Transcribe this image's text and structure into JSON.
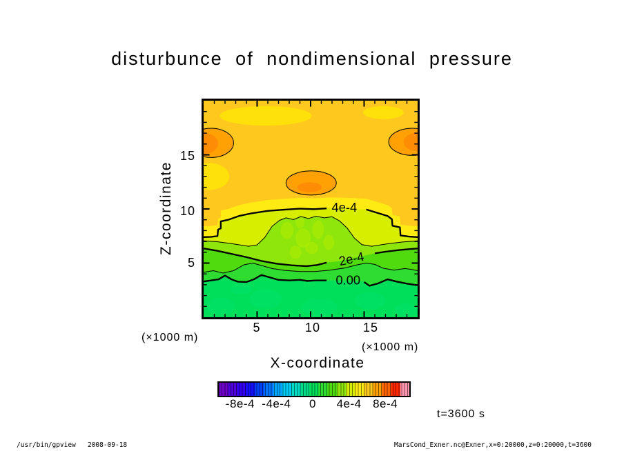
{
  "title": "disturbunce  of  nondimensional  pressure",
  "axes": {
    "x_label": "X-coordinate",
    "y_label": "Z-coordinate",
    "x_unit_left": "(×1000 m)",
    "x_unit_right": "(×1000 m)",
    "y_ticks": [
      "15",
      "10",
      "5"
    ],
    "x_ticks": [
      "5",
      "10",
      "15"
    ]
  },
  "annotation": "t=3600 s",
  "footer": {
    "left": "/usr/bin/gpview   2008-09-18",
    "right": "MarsCond_Exner.nc@Exner,x=0:20000,z=0:20000,t=3600"
  },
  "chart_data": {
    "type": "heatmap",
    "subtype": "filled-contour",
    "title": "disturbunce of nondimensional pressure",
    "xlabel": "X-coordinate (×1000 m)",
    "ylabel": "Z-coordinate (×1000 m)",
    "xlim": [
      0,
      20
    ],
    "ylim": [
      0,
      20
    ],
    "x_major_ticks": [
      5,
      10,
      15
    ],
    "y_major_ticks": [
      5,
      10,
      15
    ],
    "minor_tick_step": 1,
    "contour_interval": 0.0001,
    "time_annotation": "t=3600 s",
    "colorbar": {
      "range": [
        -0.00105,
        0.00105
      ],
      "tick_values": [
        -0.0008,
        -0.0004,
        0,
        0.0004,
        0.0008
      ],
      "tick_labels": [
        "-8e-4",
        "-4e-4",
        "0",
        "4e-4",
        "8e-4"
      ],
      "colors": [
        "#6E00C8",
        "#5000DC",
        "#3200F0",
        "#1410FF",
        "#0041FF",
        "#0073FF",
        "#00A5FF",
        "#00CDF5",
        "#00DCC3",
        "#00DC87",
        "#00DF5A",
        "#2EDC32",
        "#50DB0F",
        "#8FE60A",
        "#D8EE00",
        "#FFEB14",
        "#FFC81E",
        "#FFA005",
        "#FF6400",
        "#FF2800",
        "#FF96AF"
      ]
    },
    "fills": {
      "base_5_6": "#FFC81E",
      "band_4_5": "#FFEB14",
      "pale_patch": "#FFE10A",
      "blob_6_7": "#FFA005",
      "blob_core_7_8": "#FF8C05",
      "band_3_4": "#D8EE00",
      "band_2_3": "#8FE60A",
      "band_1_2": "#50DB0F",
      "band_0_1": "#2EDC32",
      "band_neg": "#00DF5A",
      "band_above_offset": 1.0
    },
    "contours": [
      {
        "value": 0.0004,
        "label": "4e-4",
        "weight": "thick",
        "fill_below": "band_3_4",
        "label_at": [
          13.15,
          10.15
        ],
        "label_angle": 0,
        "gap": [
          11.5,
          15.2
        ],
        "points": [
          [
            0,
            7.4
          ],
          [
            0.7,
            7.42
          ],
          [
            1.3,
            7.5
          ],
          [
            1.35,
            8.1
          ],
          [
            1.6,
            8.2
          ],
          [
            1.6,
            8.85
          ],
          [
            2.3,
            9.0
          ],
          [
            3.3,
            9.35
          ],
          [
            4.5,
            9.6
          ],
          [
            6,
            9.82
          ],
          [
            7.5,
            9.93
          ],
          [
            9,
            10.03
          ],
          [
            10.3,
            9.98
          ],
          [
            11.5,
            10.05
          ],
          [
            12.6,
            10.05
          ],
          [
            14.0,
            10.0
          ],
          [
            15.2,
            9.95
          ],
          [
            16.2,
            9.65
          ],
          [
            17.2,
            9.35
          ],
          [
            17.6,
            9.05
          ],
          [
            17.65,
            8.45
          ],
          [
            18.35,
            8.3
          ],
          [
            18.4,
            7.55
          ],
          [
            19.2,
            7.45
          ],
          [
            20,
            7.4
          ]
        ]
      },
      {
        "value": 0.0003,
        "label": null,
        "weight": "thin",
        "fill_below": "band_2_3",
        "points": [
          [
            0,
            7.05
          ],
          [
            1.2,
            6.98
          ],
          [
            2.6,
            6.8
          ],
          [
            4.2,
            6.55
          ],
          [
            5,
            6.68
          ],
          [
            5.7,
            7.35
          ],
          [
            6.4,
            8.4
          ],
          [
            7.1,
            8.95
          ],
          [
            7.7,
            9.18
          ],
          [
            8.4,
            9.02
          ],
          [
            9.1,
            9.3
          ],
          [
            9.8,
            9.12
          ],
          [
            10.5,
            9.32
          ],
          [
            11.3,
            9.18
          ],
          [
            12,
            9.28
          ],
          [
            12.7,
            8.9
          ],
          [
            13.4,
            8.25
          ],
          [
            14.1,
            7.3
          ],
          [
            14.8,
            6.7
          ],
          [
            15.7,
            6.55
          ],
          [
            17.2,
            6.78
          ],
          [
            18.6,
            6.95
          ],
          [
            20,
            7.05
          ]
        ]
      },
      {
        "value": 0.0002,
        "label": "2e-4",
        "weight": "thick",
        "fill_below": "band_1_2",
        "label_at": [
          13.9,
          5.42
        ],
        "label_angle": -12,
        "gap": [
          11.5,
          16.0
        ],
        "points": [
          [
            0,
            6.35
          ],
          [
            1.2,
            6.15
          ],
          [
            2.6,
            5.85
          ],
          [
            4,
            5.55
          ],
          [
            5.4,
            5.2
          ],
          [
            6.8,
            4.95
          ],
          [
            8.2,
            4.8
          ],
          [
            9.6,
            4.72
          ],
          [
            10.6,
            4.82
          ],
          [
            11.5,
            5.05
          ],
          [
            12.8,
            5.2
          ],
          [
            14.4,
            5.55
          ],
          [
            16.0,
            5.9
          ],
          [
            17.0,
            6.05
          ],
          [
            18.2,
            6.2
          ],
          [
            19.1,
            6.28
          ],
          [
            20,
            6.35
          ]
        ]
      },
      {
        "value": 0.0001,
        "label": null,
        "weight": "thin",
        "fill_below": "band_0_1",
        "points": [
          [
            0,
            4.15
          ],
          [
            0.9,
            4.3
          ],
          [
            1.8,
            4.08
          ],
          [
            2.8,
            4.3
          ],
          [
            3.8,
            4.85
          ],
          [
            4.6,
            5.0
          ],
          [
            5.4,
            4.78
          ],
          [
            6.4,
            4.5
          ],
          [
            7.6,
            4.32
          ],
          [
            9,
            4.22
          ],
          [
            10.4,
            4.22
          ],
          [
            11.8,
            4.35
          ],
          [
            13.2,
            4.55
          ],
          [
            14.4,
            4.85
          ],
          [
            15.2,
            5.0
          ],
          [
            16,
            4.88
          ],
          [
            16.8,
            4.52
          ],
          [
            17.8,
            4.35
          ],
          [
            18.8,
            4.5
          ],
          [
            19.4,
            4.42
          ],
          [
            20,
            4.3
          ]
        ]
      },
      {
        "value": 0,
        "label": "0.00",
        "weight": "thick",
        "fill_below": "band_neg",
        "label_at": [
          13.5,
          3.45
        ],
        "label_angle": 0,
        "gap": [
          11.7,
          15.0
        ],
        "points": [
          [
            0,
            3.3
          ],
          [
            0.7,
            3.4
          ],
          [
            1.4,
            3.5
          ],
          [
            2.0,
            3.85
          ],
          [
            2.6,
            3.5
          ],
          [
            3.2,
            3.28
          ],
          [
            4.0,
            3.25
          ],
          [
            4.7,
            3.5
          ],
          [
            5.4,
            3.9
          ],
          [
            6.1,
            3.7
          ],
          [
            7.0,
            3.45
          ],
          [
            8.0,
            3.4
          ],
          [
            9.0,
            3.45
          ],
          [
            9.7,
            3.35
          ],
          [
            10.5,
            3.4
          ],
          [
            11.5,
            3.4
          ],
          [
            12.5,
            3.4
          ],
          [
            13.5,
            3.38
          ],
          [
            14.9,
            3.3
          ],
          [
            15.0,
            3.25
          ],
          [
            15.5,
            2.9
          ],
          [
            16.3,
            3.12
          ],
          [
            17.2,
            3.5
          ],
          [
            18.0,
            3.3
          ],
          [
            19.0,
            3.1
          ],
          [
            20,
            2.95
          ]
        ]
      }
    ],
    "maxima_blobs": [
      {
        "cx": 0.7,
        "cz": 16.1,
        "rx": 2.1,
        "rz": 1.35,
        "core": {
          "cx": 0.15,
          "cz": 16.05,
          "rx": 1.2,
          "rz": 0.95
        }
      },
      {
        "cx": 19.5,
        "cz": 16.2,
        "rx": 2.2,
        "rz": 1.25,
        "core": {
          "cx": 19.95,
          "cz": 16.2,
          "rx": 1.25,
          "rz": 0.85
        }
      },
      {
        "cx": 10.05,
        "cz": 12.4,
        "rx": 2.35,
        "rz": 1.12,
        "core": {
          "cx": 9.9,
          "cz": 12.0,
          "rx": 1.15,
          "rz": 0.45
        }
      }
    ],
    "pale_patches": [
      {
        "cx": 5.8,
        "cz": 18.6,
        "rx": 4.3,
        "rz": 0.9
      },
      {
        "cx": 16.8,
        "cz": 18.9,
        "rx": 1.9,
        "rz": 0.6
      },
      {
        "cx": 0.5,
        "cz": 13.0,
        "rx": 1.9,
        "rz": 1.25
      }
    ],
    "speckles_dome": {
      "color": "#BFF000",
      "opacity": 0.4,
      "items": [
        [
          7.8,
          8.0,
          0.6,
          0.8
        ],
        [
          9.3,
          7.3,
          0.7,
          0.9
        ],
        [
          10.7,
          8.1,
          0.55,
          0.85
        ],
        [
          11.7,
          6.9,
          0.5,
          0.7
        ],
        [
          8.6,
          6.0,
          0.55,
          0.6
        ],
        [
          10.1,
          6.4,
          0.6,
          0.55
        ],
        [
          9.0,
          8.8,
          0.4,
          0.6
        ]
      ]
    },
    "speckles_bottom": {
      "color": "#00E97E",
      "opacity": 0.3,
      "items": [
        [
          1.6,
          1.0,
          1.3,
          0.8
        ],
        [
          5.8,
          1.7,
          1.5,
          0.9
        ],
        [
          10.8,
          0.9,
          1.7,
          0.8
        ],
        [
          15.6,
          1.5,
          1.4,
          0.8
        ],
        [
          18.9,
          0.7,
          1.1,
          0.6
        ],
        [
          3.5,
          2.6,
          1.0,
          0.5
        ]
      ]
    }
  }
}
